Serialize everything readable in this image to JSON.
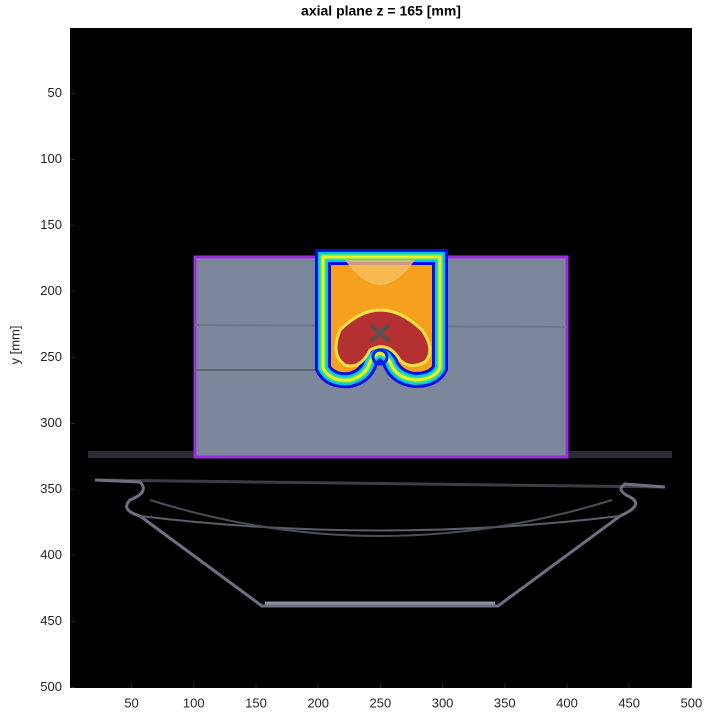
{
  "chart_data": {
    "type": "image",
    "title": "axial plane z = 165 [mm]",
    "y_label": "y [mm]",
    "xlim": [
      0.5,
      500.5
    ],
    "ylim": [
      500.5,
      0.5
    ],
    "xticks": [
      50,
      100,
      150,
      200,
      250,
      300,
      350,
      400,
      450,
      500
    ],
    "yticks": [
      50,
      100,
      150,
      200,
      250,
      300,
      350,
      400,
      450,
      500
    ]
  }
}
